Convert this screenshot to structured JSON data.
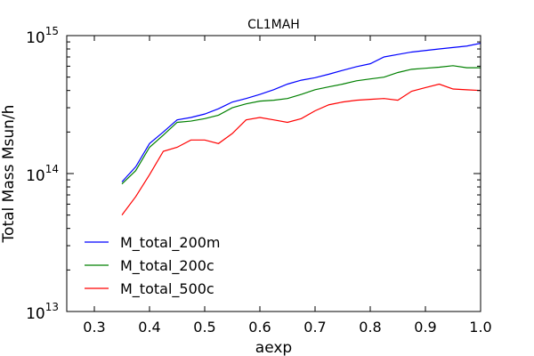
{
  "chart_data": {
    "type": "line",
    "title": "CL1MAH",
    "xlabel": "aexp",
    "ylabel": "Total Mass Msun/h",
    "xlim": [
      0.25,
      1.0
    ],
    "ylim": [
      10000000000000.0,
      1000000000000000.0
    ],
    "yscale": "log",
    "grid": false,
    "legend_position": "lower-left",
    "x_ticks": [
      0.3,
      0.4,
      0.5,
      0.6,
      0.7,
      0.8,
      0.9,
      1.0
    ],
    "x_tick_labels": [
      "0.3",
      "0.4",
      "0.5",
      "0.6",
      "0.7",
      "0.8",
      "0.9",
      "1.0"
    ],
    "y_tick_labels": [
      {
        "value": 10000000000000.0,
        "base": "10",
        "exp": "13"
      },
      {
        "value": 100000000000000.0,
        "base": "10",
        "exp": "14"
      },
      {
        "value": 1000000000000000.0,
        "base": "10",
        "exp": "15"
      }
    ],
    "x": [
      0.35,
      0.375,
      0.4,
      0.425,
      0.45,
      0.475,
      0.5,
      0.525,
      0.55,
      0.575,
      0.6,
      0.625,
      0.65,
      0.675,
      0.7,
      0.725,
      0.75,
      0.775,
      0.8,
      0.825,
      0.85,
      0.875,
      0.9,
      0.925,
      0.95,
      0.975,
      1.0
    ],
    "series": [
      {
        "name": "M_total_200m",
        "color": "#0000ff",
        "values": [
          87000000000000.0,
          112000000000000.0,
          165000000000000.0,
          200000000000000.0,
          245000000000000.0,
          255000000000000.0,
          270000000000000.0,
          295000000000000.0,
          330000000000000.0,
          350000000000000.0,
          375000000000000.0,
          405000000000000.0,
          445000000000000.0,
          475000000000000.0,
          495000000000000.0,
          525000000000000.0,
          560000000000000.0,
          595000000000000.0,
          625000000000000.0,
          700000000000000.0,
          730000000000000.0,
          760000000000000.0,
          780000000000000.0,
          800000000000000.0,
          820000000000000.0,
          840000000000000.0,
          880000000000000.0
        ]
      },
      {
        "name": "M_total_200c",
        "color": "#008000",
        "values": [
          84000000000000.0,
          105000000000000.0,
          155000000000000.0,
          190000000000000.0,
          235000000000000.0,
          240000000000000.0,
          250000000000000.0,
          265000000000000.0,
          300000000000000.0,
          320000000000000.0,
          335000000000000.0,
          340000000000000.0,
          350000000000000.0,
          375000000000000.0,
          405000000000000.0,
          425000000000000.0,
          445000000000000.0,
          470000000000000.0,
          485000000000000.0,
          500000000000000.0,
          540000000000000.0,
          570000000000000.0,
          580000000000000.0,
          590000000000000.0,
          605000000000000.0,
          585000000000000.0,
          585000000000000.0
        ]
      },
      {
        "name": "M_total_500c",
        "color": "#ff0000",
        "values": [
          50000000000000.0,
          68000000000000.0,
          98000000000000.0,
          145000000000000.0,
          155000000000000.0,
          175000000000000.0,
          175000000000000.0,
          165000000000000.0,
          195000000000000.0,
          245000000000000.0,
          255000000000000.0,
          245000000000000.0,
          235000000000000.0,
          250000000000000.0,
          285000000000000.0,
          315000000000000.0,
          330000000000000.0,
          340000000000000.0,
          345000000000000.0,
          350000000000000.0,
          340000000000000.0,
          395000000000000.0,
          420000000000000.0,
          445000000000000.0,
          410000000000000.0,
          405000000000000.0,
          400000000000000.0
        ]
      }
    ]
  }
}
